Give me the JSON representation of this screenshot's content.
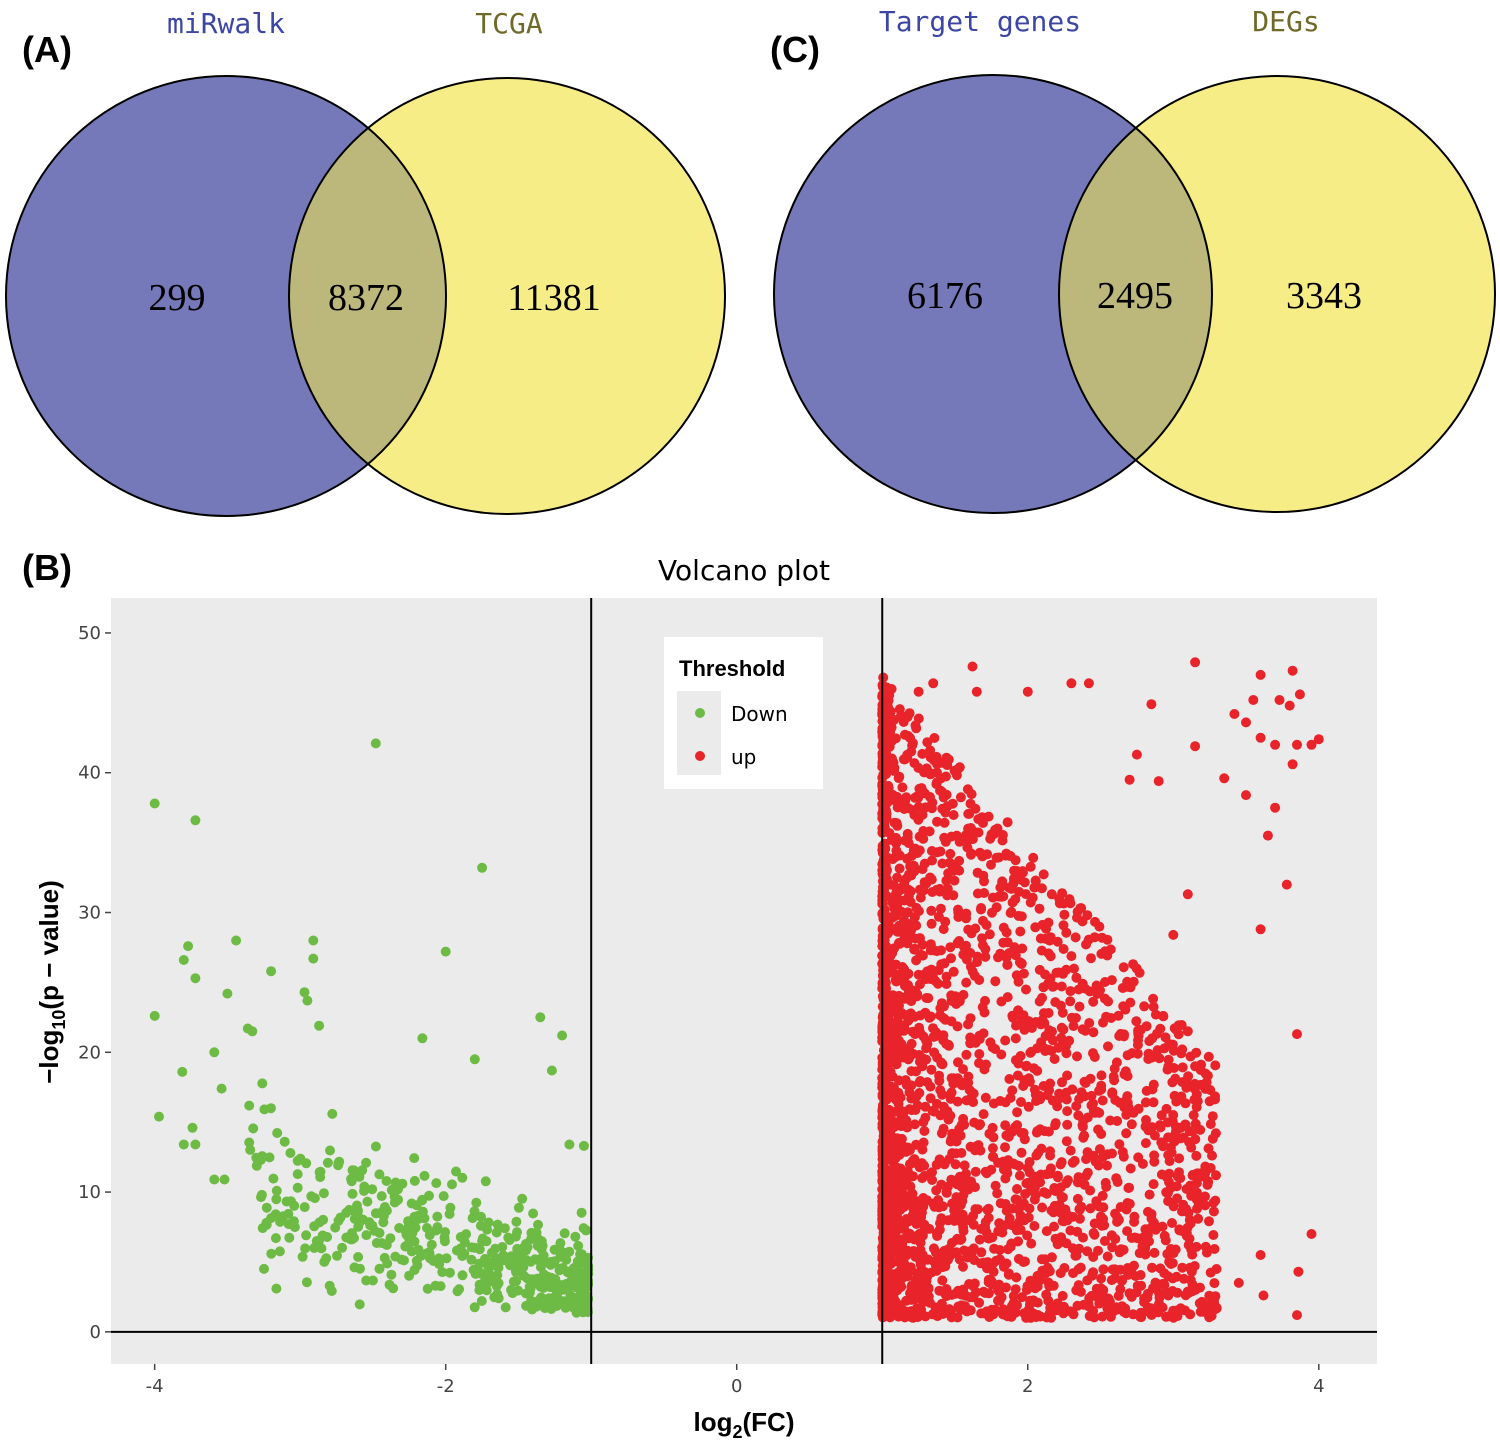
{
  "panels": {
    "a": "(A)",
    "b": "(B)",
    "c": "(C)"
  },
  "colors": {
    "venn_left": "#7579b9",
    "venn_right": "#f7ed86",
    "venn_overlap": "#bcb87c",
    "venn_left_title": "#3d46a4",
    "venn_right_title": "#6f6a2a",
    "panel_bg": "#ebebeb",
    "down": "#6dbb45",
    "up": "#e8242a"
  },
  "venn_a": {
    "left_title": "miRwalk",
    "right_title": "TCGA",
    "left_only": "299",
    "overlap": "8372",
    "right_only": "11381"
  },
  "venn_c": {
    "left_title": "Target genes",
    "right_title": "DEGs",
    "left_only": "6176",
    "overlap": "2495",
    "right_only": "3343"
  },
  "chart_data": {
    "type": "scatter",
    "title": "Volcano plot",
    "xlabel_main": "log",
    "xlabel_sub": "2",
    "xlabel_tail": "(FC)",
    "ylabel_main": "−log",
    "ylabel_sub": "10",
    "ylabel_tail": "(p − value)",
    "xlim": [
      -4.3,
      4.4
    ],
    "ylim": [
      -2.3,
      52.5
    ],
    "xticks": [
      -4,
      -2,
      0,
      2,
      4
    ],
    "xtick_labels": [
      "-4",
      "-2",
      "0",
      "2",
      "4"
    ],
    "yticks": [
      0,
      10,
      20,
      30,
      40,
      50
    ],
    "ytick_labels": [
      "0",
      "10",
      "20",
      "30",
      "40",
      "50"
    ],
    "vlines": [
      -1,
      1
    ],
    "hline": 0,
    "legend": {
      "title": "Threshold",
      "position": "top-center",
      "entries": [
        "Down",
        "up"
      ]
    },
    "series": [
      {
        "name": "Down",
        "approx_count": 520,
        "points": [
          [
            -4.0,
            37.8
          ],
          [
            -3.72,
            36.6
          ],
          [
            -2.48,
            42.1
          ],
          [
            -1.75,
            33.2
          ],
          [
            -3.8,
            26.6
          ],
          [
            -3.77,
            27.6
          ],
          [
            -3.72,
            25.3
          ],
          [
            -3.44,
            28.0
          ],
          [
            -4.0,
            22.6
          ],
          [
            -3.5,
            24.2
          ],
          [
            -3.2,
            25.8
          ],
          [
            -2.97,
            24.3
          ],
          [
            -2.91,
            28.0
          ],
          [
            -2.91,
            26.7
          ],
          [
            -2.0,
            27.2
          ],
          [
            -2.95,
            23.7
          ],
          [
            -2.87,
            21.9
          ],
          [
            -3.36,
            21.7
          ],
          [
            -3.97,
            15.4
          ],
          [
            -3.81,
            18.6
          ],
          [
            -3.59,
            20.0
          ],
          [
            -3.54,
            17.4
          ],
          [
            -3.74,
            14.6
          ],
          [
            -3.8,
            13.4
          ],
          [
            -3.72,
            13.4
          ],
          [
            -3.59,
            10.9
          ],
          [
            -3.52,
            10.9
          ],
          [
            -2.16,
            21.0
          ],
          [
            -1.35,
            22.5
          ],
          [
            -1.2,
            21.2
          ],
          [
            -1.8,
            19.5
          ],
          [
            -1.27,
            18.7
          ],
          [
            -1.15,
            13.4
          ],
          [
            -1.05,
            13.3
          ]
        ],
        "cluster": {
          "x_range": [
            -3.3,
            -1.02
          ],
          "y_range": [
            1.3,
            20
          ],
          "dense_near": [
            -1.15,
            4.0
          ]
        }
      },
      {
        "name": "up",
        "approx_count": 2495,
        "points": [
          [
            1.62,
            47.6
          ],
          [
            1.35,
            46.4
          ],
          [
            1.25,
            45.8
          ],
          [
            1.65,
            45.8
          ],
          [
            2.0,
            45.8
          ],
          [
            2.3,
            46.4
          ],
          [
            2.42,
            46.4
          ],
          [
            3.15,
            47.9
          ],
          [
            3.6,
            47.0
          ],
          [
            3.82,
            47.3
          ],
          [
            3.55,
            45.2
          ],
          [
            3.73,
            45.2
          ],
          [
            3.87,
            45.6
          ],
          [
            3.8,
            44.8
          ],
          [
            2.85,
            44.9
          ],
          [
            3.42,
            44.2
          ],
          [
            3.5,
            43.6
          ],
          [
            3.6,
            42.5
          ],
          [
            3.7,
            42.0
          ],
          [
            3.85,
            42.0
          ],
          [
            3.95,
            42.0
          ],
          [
            4.0,
            42.4
          ],
          [
            3.82,
            40.6
          ],
          [
            3.15,
            41.9
          ],
          [
            2.75,
            41.3
          ],
          [
            2.7,
            39.5
          ],
          [
            2.9,
            39.4
          ],
          [
            3.35,
            39.6
          ],
          [
            3.5,
            38.4
          ],
          [
            3.7,
            37.5
          ],
          [
            3.65,
            35.5
          ],
          [
            3.85,
            21.3
          ],
          [
            3.6,
            28.8
          ],
          [
            3.78,
            32.0
          ],
          [
            3.1,
            31.3
          ],
          [
            3.0,
            28.4
          ],
          [
            3.1,
            21.5
          ],
          [
            3.15,
            19.0
          ],
          [
            3.86,
            4.3
          ],
          [
            3.95,
            7.0
          ],
          [
            3.85,
            1.2
          ],
          [
            3.6,
            5.5
          ],
          [
            3.45,
            3.5
          ],
          [
            3.62,
            2.6
          ]
        ],
        "cluster": {
          "x_range": [
            1.0,
            3.3
          ],
          "y_range": [
            1.0,
            47
          ],
          "dense_near": [
            1.15,
            15.0
          ]
        }
      }
    ]
  }
}
